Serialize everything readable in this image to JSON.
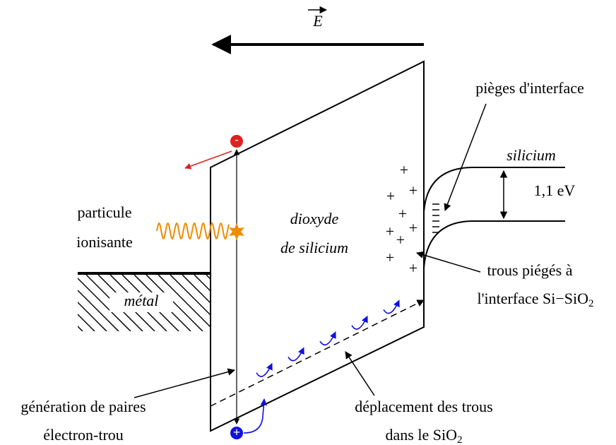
{
  "field_label": "E",
  "labels": {
    "traps": "pièges d'interface",
    "silicon": "silicium",
    "gap": "1,1 eV",
    "particle_1": "particule",
    "particle_2": "ionisante",
    "oxide_1": "dioxyde",
    "oxide_2": "de silicium",
    "metal": "métal",
    "trapped_1": "trous piégés à",
    "trapped_2": {
      "text": "l'interface Si−SiO",
      "subscript": "2"
    },
    "generation_1": "génération de paires",
    "generation_2": "électron-trou",
    "transport_1": "déplacement des trous",
    "transport_2": {
      "text": "dans le SiO",
      "subscript": "2"
    }
  },
  "electron_symbol": "-",
  "hole_symbol": "+",
  "trapped_holes": [
    "+",
    "+",
    "+",
    "+",
    "+",
    "+",
    "+",
    "+",
    "+"
  ]
}
